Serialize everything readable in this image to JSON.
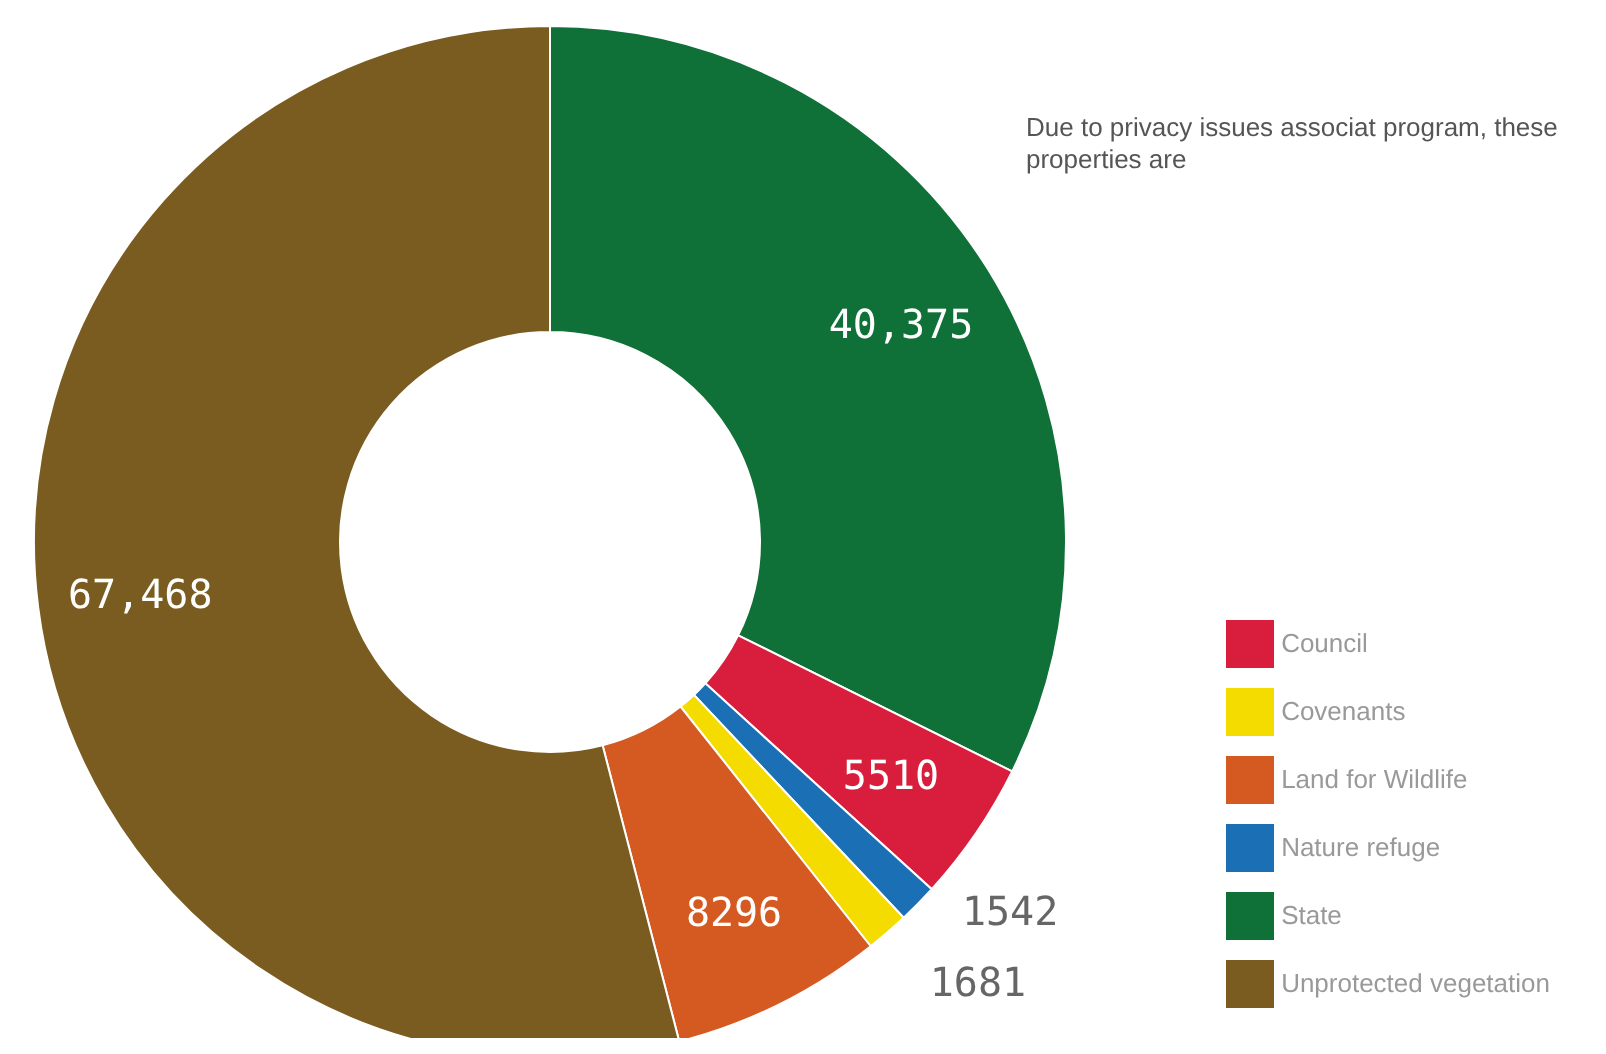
{
  "chart_data": {
    "type": "donut",
    "categories": [
      "State",
      "Council",
      "Nature refuge",
      "Covenants",
      "Land for Wildlife",
      "Unprotected vegetation"
    ],
    "values": [
      40375,
      5510,
      1542,
      1681,
      8296,
      67468
    ],
    "colors": [
      "#0f7038",
      "#d81e3c",
      "#1a6fb5",
      "#f5dc00",
      "#d45a22",
      "#7a5c20"
    ],
    "value_labels": [
      "40,375",
      "5510",
      "1542",
      "1681",
      "8296",
      "67,468"
    ],
    "legend": "bottom right",
    "annotations": [
      "Due to privacy issues associat program, these properties are"
    ]
  }
}
